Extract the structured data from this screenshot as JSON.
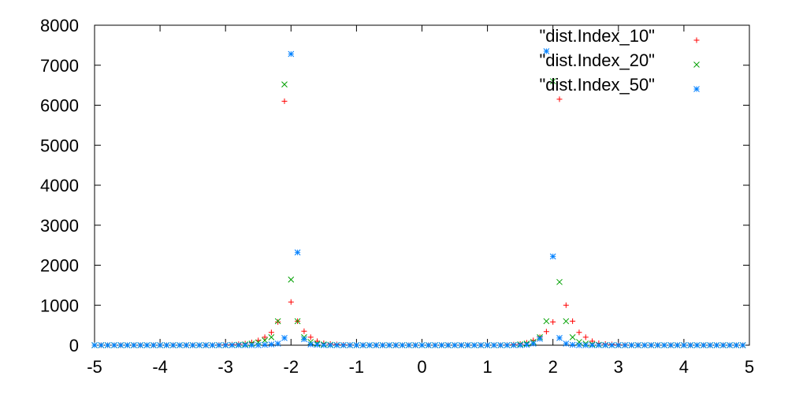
{
  "chart_data": {
    "type": "scatter",
    "title": "",
    "xlabel": "",
    "ylabel": "",
    "xlim": [
      -5,
      5
    ],
    "ylim": [
      0,
      8000
    ],
    "x_ticks": [
      -5,
      -4,
      -3,
      -2,
      -1,
      0,
      1,
      2,
      3,
      4,
      5
    ],
    "y_ticks": [
      0,
      1000,
      2000,
      3000,
      4000,
      5000,
      6000,
      7000,
      8000
    ],
    "grid": false,
    "legend_position": "top-right",
    "series": [
      {
        "name": "\"dist.Index_10\"",
        "color": "#ff0000",
        "marker": "plus",
        "x": [
          -5.0,
          -4.9,
          -4.8,
          -4.7,
          -4.6,
          -4.5,
          -4.4,
          -4.3,
          -4.2,
          -4.1,
          -4.0,
          -3.9,
          -3.8,
          -3.7,
          -3.6,
          -3.5,
          -3.4,
          -3.3,
          -3.2,
          -3.1,
          -3.0,
          -2.9,
          -2.8,
          -2.7,
          -2.6,
          -2.5,
          -2.4,
          -2.3,
          -2.2,
          -2.1,
          -2.0,
          -1.9,
          -1.8,
          -1.7,
          -1.6,
          -1.5,
          -1.4,
          -1.3,
          -1.2,
          -1.1,
          -1.0,
          -0.9,
          -0.8,
          -0.7,
          -0.6,
          -0.5,
          -0.4,
          -0.3,
          -0.2,
          -0.1,
          0.0,
          0.1,
          0.2,
          0.3,
          0.4,
          0.5,
          0.6,
          0.7,
          0.8,
          0.9,
          1.0,
          1.1,
          1.2,
          1.3,
          1.4,
          1.5,
          1.6,
          1.7,
          1.8,
          1.9,
          2.0,
          2.1,
          2.2,
          2.3,
          2.4,
          2.5,
          2.6,
          2.7,
          2.8,
          2.9,
          3.0,
          3.1,
          3.2,
          3.3,
          3.4,
          3.5,
          3.6,
          3.7,
          3.8,
          3.9,
          4.0,
          4.1,
          4.2,
          4.3,
          4.4,
          4.5,
          4.6,
          4.7,
          4.8,
          4.9
        ],
        "y": [
          0,
          0,
          0,
          0,
          0,
          0,
          0,
          0,
          0,
          0,
          0,
          0,
          0,
          0,
          0,
          0,
          0,
          0,
          0,
          5,
          10,
          15,
          25,
          40,
          70,
          120,
          200,
          320,
          580,
          6100,
          1080,
          600,
          350,
          200,
          100,
          50,
          30,
          20,
          10,
          5,
          0,
          0,
          0,
          0,
          0,
          0,
          0,
          0,
          0,
          0,
          0,
          0,
          0,
          0,
          0,
          0,
          0,
          0,
          0,
          0,
          0,
          0,
          0,
          5,
          15,
          30,
          60,
          120,
          200,
          340,
          580,
          6150,
          1000,
          600,
          320,
          200,
          100,
          50,
          30,
          20,
          10,
          5,
          0,
          0,
          0,
          0,
          0,
          0,
          0,
          0,
          0,
          0,
          0,
          0,
          0,
          0,
          0,
          0,
          0,
          0
        ]
      },
      {
        "name": "\"dist.Index_20\"",
        "color": "#00a000",
        "marker": "cross",
        "x": [
          -5.0,
          -4.9,
          -4.8,
          -4.7,
          -4.6,
          -4.5,
          -4.4,
          -4.3,
          -4.2,
          -4.1,
          -4.0,
          -3.9,
          -3.8,
          -3.7,
          -3.6,
          -3.5,
          -3.4,
          -3.3,
          -3.2,
          -3.1,
          -3.0,
          -2.9,
          -2.8,
          -2.7,
          -2.6,
          -2.5,
          -2.4,
          -2.3,
          -2.2,
          -2.1,
          -2.0,
          -1.9,
          -1.8,
          -1.7,
          -1.6,
          -1.5,
          -1.4,
          -1.3,
          -1.2,
          -1.1,
          -1.0,
          -0.9,
          -0.8,
          -0.7,
          -0.6,
          -0.5,
          -0.4,
          -0.3,
          -0.2,
          -0.1,
          0.0,
          0.1,
          0.2,
          0.3,
          0.4,
          0.5,
          0.6,
          0.7,
          0.8,
          0.9,
          1.0,
          1.1,
          1.2,
          1.3,
          1.4,
          1.5,
          1.6,
          1.7,
          1.8,
          1.9,
          2.0,
          2.1,
          2.2,
          2.3,
          2.4,
          2.5,
          2.6,
          2.7,
          2.8,
          2.9,
          3.0,
          3.1,
          3.2,
          3.3,
          3.4,
          3.5,
          3.6,
          3.7,
          3.8,
          3.9,
          4.0,
          4.1,
          4.2,
          4.3,
          4.4,
          4.5,
          4.6,
          4.7,
          4.8,
          4.9
        ],
        "y": [
          0,
          0,
          0,
          0,
          0,
          0,
          0,
          0,
          0,
          0,
          0,
          0,
          0,
          0,
          0,
          0,
          0,
          0,
          0,
          0,
          0,
          5,
          10,
          20,
          40,
          70,
          120,
          200,
          600,
          6520,
          1640,
          600,
          200,
          80,
          40,
          20,
          10,
          5,
          0,
          0,
          0,
          0,
          0,
          0,
          0,
          0,
          0,
          0,
          0,
          0,
          0,
          0,
          0,
          0,
          0,
          0,
          0,
          0,
          0,
          0,
          0,
          0,
          0,
          0,
          5,
          20,
          40,
          80,
          200,
          600,
          6600,
          1580,
          600,
          200,
          80,
          40,
          20,
          10,
          5,
          0,
          0,
          0,
          0,
          0,
          0,
          0,
          0,
          0,
          0,
          0,
          0,
          0,
          0,
          0,
          0,
          0,
          0,
          0,
          0,
          0
        ]
      },
      {
        "name": "\"dist.Index_50\"",
        "color": "#0080ff",
        "marker": "star",
        "x": [
          -5.0,
          -4.9,
          -4.8,
          -4.7,
          -4.6,
          -4.5,
          -4.4,
          -4.3,
          -4.2,
          -4.1,
          -4.0,
          -3.9,
          -3.8,
          -3.7,
          -3.6,
          -3.5,
          -3.4,
          -3.3,
          -3.2,
          -3.1,
          -3.0,
          -2.9,
          -2.8,
          -2.7,
          -2.6,
          -2.5,
          -2.4,
          -2.3,
          -2.2,
          -2.1,
          -2.0,
          -1.9,
          -1.8,
          -1.7,
          -1.6,
          -1.5,
          -1.4,
          -1.3,
          -1.2,
          -1.1,
          -1.0,
          -0.9,
          -0.8,
          -0.7,
          -0.6,
          -0.5,
          -0.4,
          -0.3,
          -0.2,
          -0.1,
          0.0,
          0.1,
          0.2,
          0.3,
          0.4,
          0.5,
          0.6,
          0.7,
          0.8,
          0.9,
          1.0,
          1.1,
          1.2,
          1.3,
          1.4,
          1.5,
          1.6,
          1.7,
          1.8,
          1.9,
          2.0,
          2.1,
          2.2,
          2.3,
          2.4,
          2.5,
          2.6,
          2.7,
          2.8,
          2.9,
          3.0,
          3.1,
          3.2,
          3.3,
          3.4,
          3.5,
          3.6,
          3.7,
          3.8,
          3.9,
          4.0,
          4.1,
          4.2,
          4.3,
          4.4,
          4.5,
          4.6,
          4.7,
          4.8,
          4.9
        ],
        "y": [
          0,
          0,
          0,
          0,
          0,
          0,
          0,
          0,
          0,
          0,
          0,
          0,
          0,
          0,
          0,
          0,
          0,
          0,
          0,
          0,
          0,
          0,
          0,
          0,
          0,
          0,
          10,
          20,
          40,
          180,
          7280,
          2320,
          150,
          20,
          10,
          0,
          0,
          0,
          0,
          0,
          0,
          0,
          0,
          0,
          0,
          0,
          0,
          0,
          0,
          0,
          0,
          0,
          0,
          0,
          0,
          0,
          0,
          0,
          0,
          0,
          0,
          0,
          0,
          0,
          0,
          0,
          10,
          40,
          160,
          7350,
          2220,
          180,
          40,
          10,
          0,
          0,
          0,
          0,
          0,
          0,
          0,
          0,
          0,
          0,
          0,
          0,
          0,
          0,
          0,
          0,
          0,
          0,
          0,
          0,
          0,
          0,
          0,
          0,
          0,
          0
        ]
      }
    ]
  }
}
